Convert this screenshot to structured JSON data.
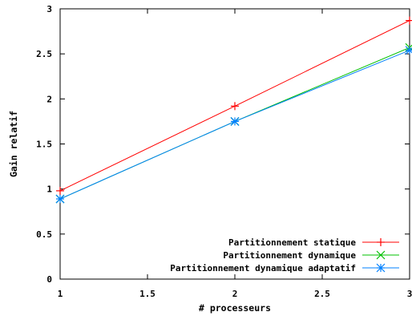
{
  "chart_data": {
    "type": "line",
    "title": "",
    "xlabel": "# processeurs",
    "ylabel": "Gain relatif",
    "xlim": [
      1,
      3
    ],
    "ylim": [
      0,
      3
    ],
    "x_ticks": [
      "1",
      "1.5",
      "2",
      "2.5",
      "3"
    ],
    "y_ticks": [
      "0",
      "0.5",
      "1",
      "1.5",
      "2",
      "2.5",
      "3"
    ],
    "grid": false,
    "legend_position": "bottom-right",
    "series": [
      {
        "name": "Partitionnement statique",
        "color": "#ff0000",
        "marker": "plus",
        "x": [
          1,
          2,
          3
        ],
        "y": [
          0.98,
          1.92,
          2.87
        ]
      },
      {
        "name": "Partitionnement dynamique",
        "color": "#00c000",
        "marker": "cross",
        "x": [
          1,
          2,
          3
        ],
        "y": [
          0.89,
          1.75,
          2.57
        ]
      },
      {
        "name": "Partitionnement dynamique adaptatif",
        "color": "#0080ff",
        "marker": "star",
        "x": [
          1,
          2,
          3
        ],
        "y": [
          0.89,
          1.75,
          2.54
        ]
      }
    ]
  }
}
